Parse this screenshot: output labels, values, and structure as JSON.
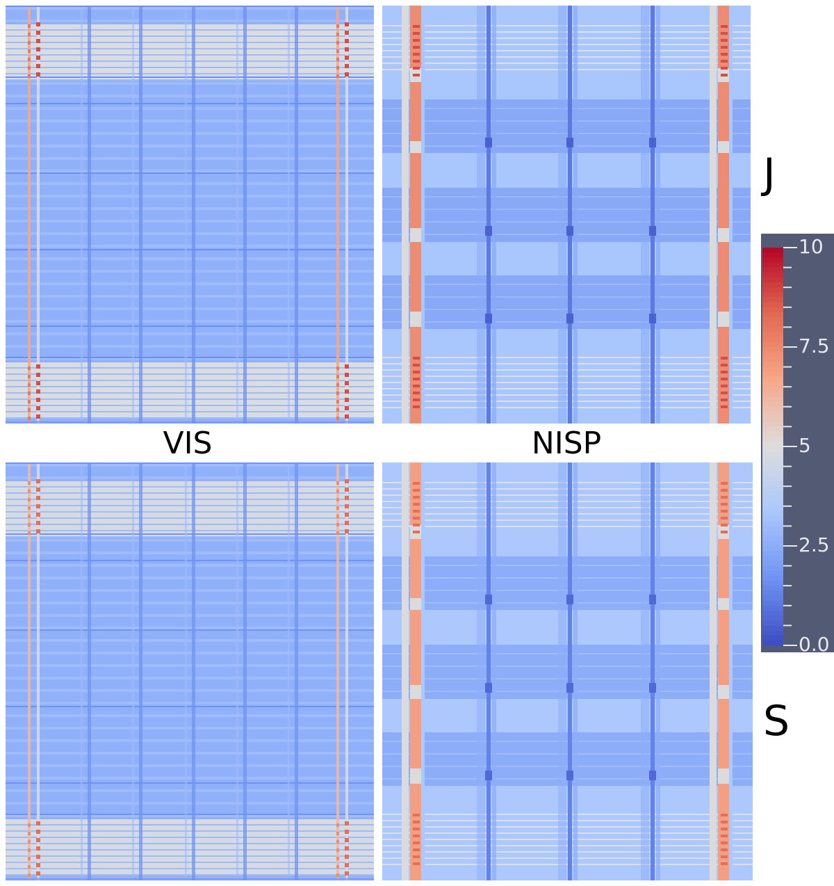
{
  "figure": {
    "labels": {
      "vis": "VIS",
      "nisp": "NISP",
      "j": "J",
      "s": "S"
    }
  },
  "colors": {
    "background": "#ffffff",
    "colorbar_panel": "#535a73",
    "colormap": [
      "#3b4cc0",
      "#6f92f3",
      "#aac7fd",
      "#dddddd",
      "#f7a889",
      "#e26952",
      "#b40426"
    ]
  },
  "chart_data": [
    {
      "type": "heatmap",
      "name": "VIS / J",
      "instrument": "VIS",
      "band": "J",
      "value_range": [
        0.0,
        10.0
      ],
      "description": "grid pattern; dense thin horizontal stripes with light-grey bands at top and bottom and red spots on two vertical lines near left and right edges",
      "levels": {
        "base": 2.6,
        "stripe_light": 3.0,
        "band_grey": 4.9,
        "line_dark": 1.6,
        "hot_line": 7.9,
        "hot_spot": 8.8
      }
    },
    {
      "type": "heatmap",
      "name": "NISP / J",
      "instrument": "NISP",
      "band": "J",
      "value_range": [
        0.0,
        10.0
      ],
      "description": "broad alternating light/medium blue horizontal bands, three dark blue vertical lines, orange vertical stripes near both edges",
      "levels": {
        "band_light": 3.3,
        "band_medium": 2.4,
        "dark_line": 1.1,
        "orange_stripe": 7.4,
        "hot_spot": 8.8
      }
    },
    {
      "type": "heatmap",
      "name": "VIS / S",
      "instrument": "VIS",
      "band": "S",
      "value_range": [
        0.0,
        10.0
      ],
      "description": "same grid structure as VIS/J with light-grey bands at top and bottom and pale red vertical lines near edges",
      "levels": {
        "base": 2.6,
        "stripe_light": 3.0,
        "band_grey": 4.8,
        "line_dark": 1.7,
        "hot_line": 7.4,
        "hot_spot": 8.2
      }
    },
    {
      "type": "heatmap",
      "name": "NISP / S",
      "instrument": "NISP",
      "band": "S",
      "value_range": [
        0.0,
        10.0
      ],
      "description": "same band structure as NISP/J with slightly lower contrast; orange/grey vertical stripes near edges and dark blue vertical lines",
      "levels": {
        "band_light": 3.4,
        "band_medium": 2.5,
        "dark_line": 1.3,
        "orange_stripe": 6.9,
        "hot_spot": 8.2
      }
    },
    {
      "type": "colorbar",
      "name": "colour scale",
      "range": [
        0.0,
        10.0
      ],
      "tick_labels": [
        "0.0",
        "2.5",
        "5",
        "7.5",
        "10"
      ],
      "tick_values": [
        0,
        2.5,
        5,
        7.5,
        10
      ],
      "minor_ticks": 20
    }
  ]
}
